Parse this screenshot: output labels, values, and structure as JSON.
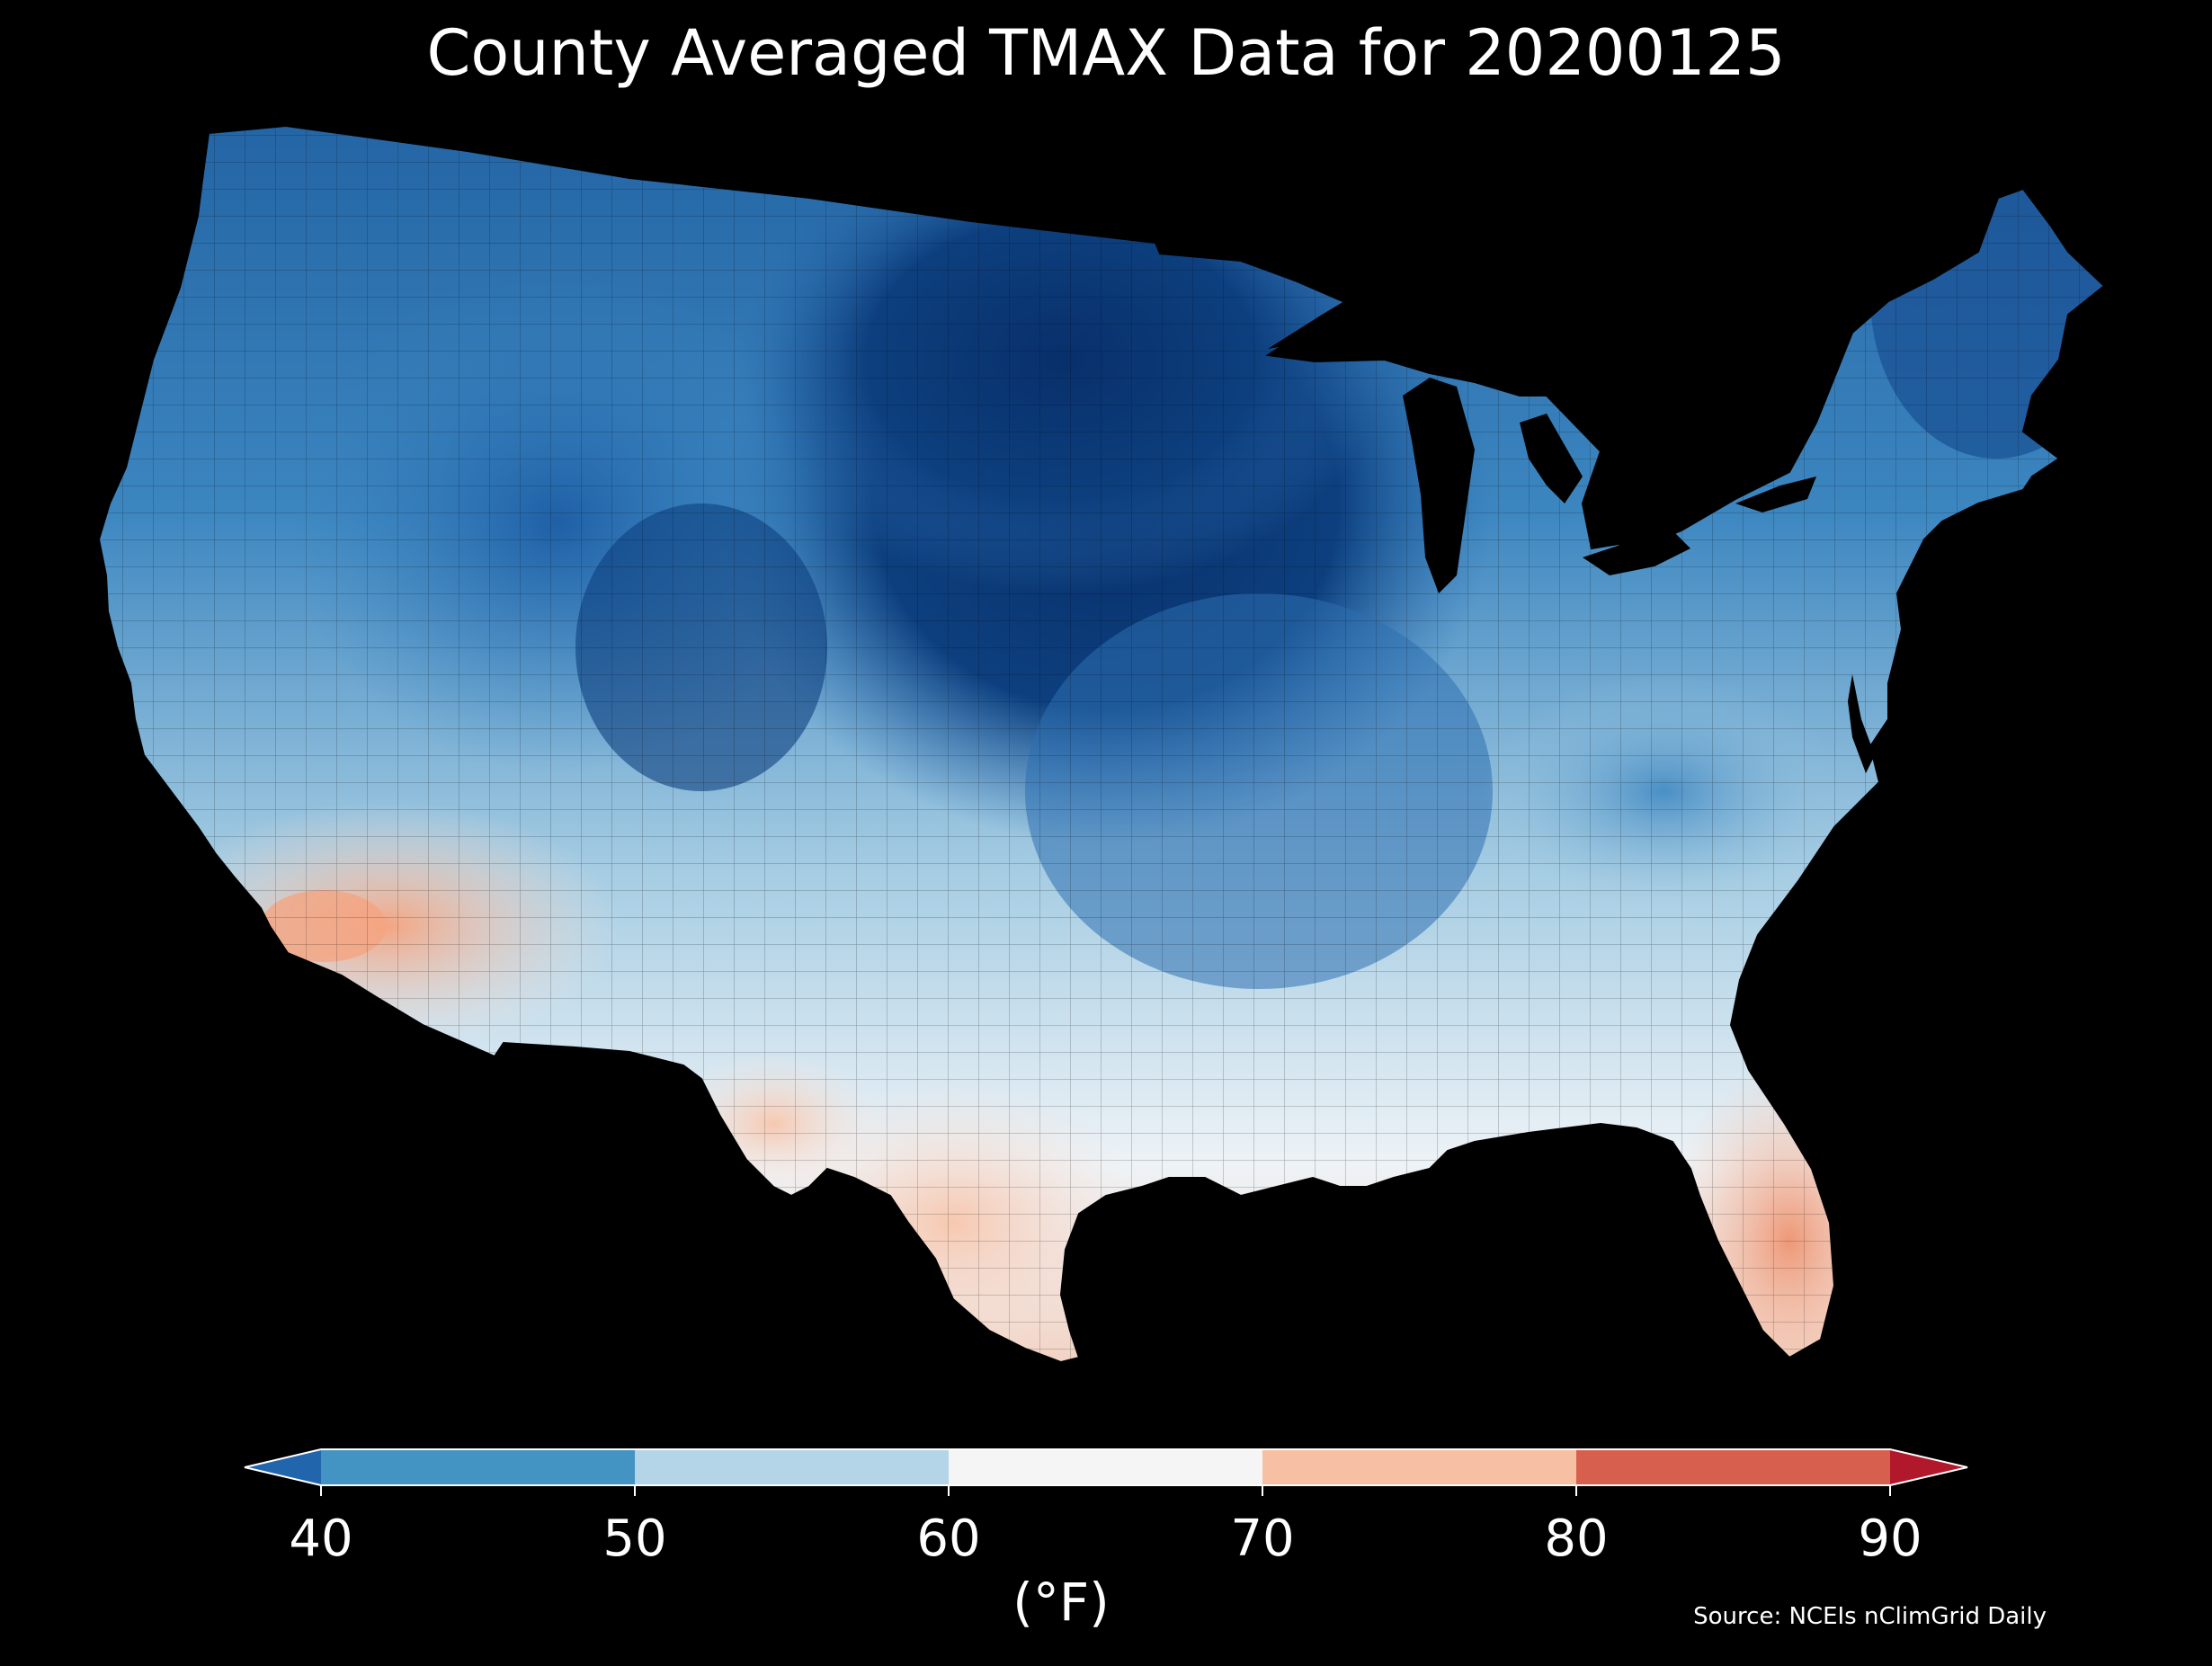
{
  "title": "County Averaged TMAX Data for 20200125",
  "unit_label": "(°F)",
  "source": "Source: NCEIs nClimGrid Daily",
  "colorbar": {
    "ticks": [
      "40",
      "50",
      "60",
      "70",
      "80",
      "90"
    ],
    "bins": [
      {
        "range": [
          40,
          50
        ],
        "color": "#4393c3"
      },
      {
        "range": [
          50,
          60
        ],
        "color": "#b4d5e8"
      },
      {
        "range": [
          60,
          70
        ],
        "color": "#f5f5f5"
      },
      {
        "range": [
          70,
          80
        ],
        "color": "#f7c0a4"
      },
      {
        "range": [
          80,
          90
        ],
        "color": "#d6604d"
      }
    ],
    "under_color": "#2166ac",
    "over_color": "#b2182b",
    "extend": "both"
  },
  "map": {
    "region": "Contiguous United States",
    "colormap": "RdBu_r",
    "background": "#000000"
  }
}
